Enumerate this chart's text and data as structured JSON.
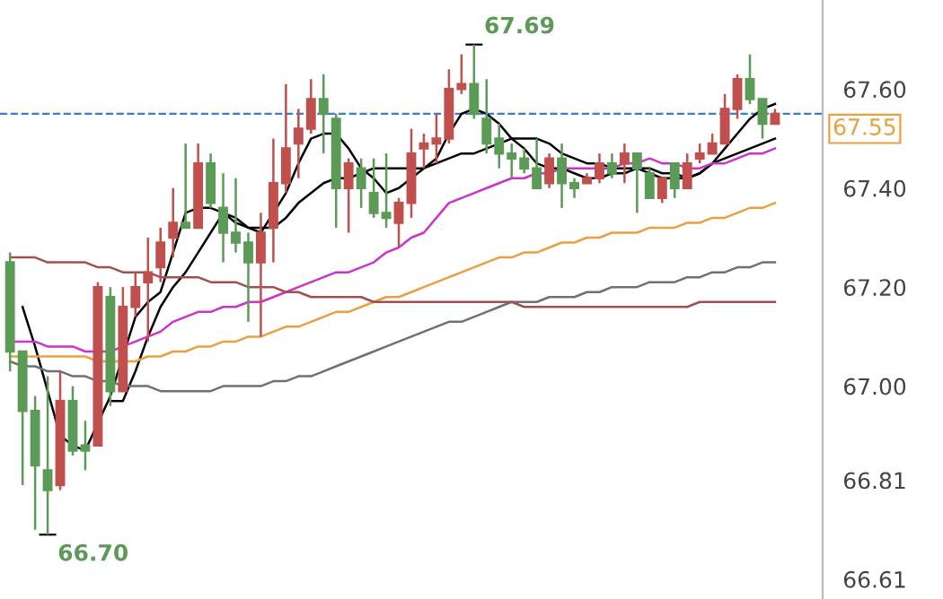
{
  "chart_data": {
    "type": "candlestick",
    "categories": [
      null,
      null,
      null,
      null,
      null,
      null,
      null,
      null,
      null,
      null,
      null,
      null,
      null,
      null,
      null,
      null,
      null,
      null,
      null,
      null,
      null,
      null,
      null,
      null,
      null,
      null,
      null,
      null,
      null,
      null,
      null,
      null,
      null,
      null,
      null,
      null,
      null,
      null,
      null,
      null,
      null,
      null,
      null,
      null,
      null,
      null,
      null,
      null,
      null,
      null,
      null,
      null,
      null,
      null,
      null,
      null,
      null,
      null,
      null,
      null,
      null,
      null
    ],
    "ohlc": [
      [
        67.25,
        67.27,
        67.03,
        67.07
      ],
      [
        67.07,
        67.07,
        66.8,
        66.95
      ],
      [
        66.95,
        66.98,
        66.71,
        66.84
      ],
      [
        66.83,
        67.02,
        66.7,
        66.79
      ],
      [
        66.8,
        67.03,
        66.79,
        66.97
      ],
      [
        66.97,
        67.0,
        66.86,
        66.87
      ],
      [
        66.88,
        66.93,
        66.83,
        66.87
      ],
      [
        66.88,
        67.21,
        66.88,
        67.2
      ],
      [
        67.18,
        67.2,
        66.96,
        66.99
      ],
      [
        66.99,
        67.2,
        66.99,
        67.16
      ],
      [
        67.16,
        67.23,
        67.14,
        67.2
      ],
      [
        67.21,
        67.3,
        67.09,
        67.23
      ],
      [
        67.24,
        67.32,
        67.21,
        67.29
      ],
      [
        67.3,
        67.4,
        67.26,
        67.33
      ],
      [
        67.33,
        67.49,
        67.32,
        67.32
      ],
      [
        67.32,
        67.49,
        67.32,
        67.45
      ],
      [
        67.45,
        67.47,
        67.36,
        67.37
      ],
      [
        67.36,
        67.43,
        67.25,
        67.31
      ],
      [
        67.31,
        67.42,
        67.27,
        67.29
      ],
      [
        67.29,
        67.31,
        67.13,
        67.25
      ],
      [
        67.25,
        67.35,
        67.1,
        67.31
      ],
      [
        67.32,
        67.5,
        67.25,
        67.41
      ],
      [
        67.41,
        67.61,
        67.39,
        67.48
      ],
      [
        67.49,
        67.56,
        67.42,
        67.52
      ],
      [
        67.52,
        67.62,
        67.51,
        67.58
      ],
      [
        67.58,
        67.63,
        67.47,
        67.55
      ],
      [
        67.54,
        67.55,
        67.32,
        67.4
      ],
      [
        67.4,
        67.46,
        67.31,
        67.45
      ],
      [
        67.44,
        67.46,
        67.36,
        67.4
      ],
      [
        67.39,
        67.46,
        67.34,
        67.35
      ],
      [
        67.35,
        67.47,
        67.32,
        67.34
      ],
      [
        67.33,
        67.38,
        67.28,
        67.37
      ],
      [
        67.37,
        67.52,
        67.34,
        67.47
      ],
      [
        67.48,
        67.51,
        67.44,
        67.49
      ],
      [
        67.49,
        67.55,
        67.45,
        67.5
      ],
      [
        67.5,
        67.64,
        67.49,
        67.6
      ],
      [
        67.6,
        67.67,
        67.59,
        67.61
      ],
      [
        67.61,
        67.69,
        67.54,
        67.55
      ],
      [
        67.54,
        67.62,
        67.47,
        67.49
      ],
      [
        67.5,
        67.53,
        67.44,
        67.47
      ],
      [
        67.47,
        67.49,
        67.42,
        67.46
      ],
      [
        67.46,
        67.48,
        67.43,
        67.44
      ],
      [
        67.44,
        67.5,
        67.4,
        67.4
      ],
      [
        67.41,
        67.47,
        67.4,
        67.46
      ],
      [
        67.46,
        67.49,
        67.36,
        67.41
      ],
      [
        67.41,
        67.42,
        67.38,
        67.4
      ],
      [
        67.41,
        67.43,
        67.41,
        67.42
      ],
      [
        67.42,
        67.47,
        67.41,
        67.45
      ],
      [
        67.45,
        67.47,
        67.42,
        67.43
      ],
      [
        67.45,
        67.49,
        67.41,
        67.47
      ],
      [
        67.47,
        67.47,
        67.35,
        67.44
      ],
      [
        67.43,
        67.44,
        67.38,
        67.38
      ],
      [
        67.38,
        67.42,
        67.37,
        67.42
      ],
      [
        67.45,
        67.45,
        67.38,
        67.4
      ],
      [
        67.4,
        67.47,
        67.4,
        67.45
      ],
      [
        67.46,
        67.49,
        67.45,
        67.47
      ],
      [
        67.47,
        67.51,
        67.47,
        67.49
      ],
      [
        67.49,
        67.59,
        67.49,
        67.56
      ],
      [
        67.56,
        67.63,
        67.54,
        67.62
      ],
      [
        67.62,
        67.67,
        67.57,
        67.58
      ],
      [
        67.58,
        67.58,
        67.5,
        67.53
      ],
      [
        67.53,
        67.56,
        67.53,
        67.55
      ]
    ],
    "colors": [
      "#5b9b57",
      "#5b9b57",
      "#5b9b57",
      "#5b9b57",
      "#c0504d",
      "#5b9b57",
      "#5b9b57",
      "#c0504d",
      "#5b9b57",
      "#c0504d",
      "#c0504d",
      "#c0504d",
      "#c0504d",
      "#c0504d",
      "#5b9b57",
      "#c0504d",
      "#5b9b57",
      "#5b9b57",
      "#5b9b57",
      "#5b9b57",
      "#c0504d",
      "#c0504d",
      "#c0504d",
      "#c0504d",
      "#c0504d",
      "#5b9b57",
      "#5b9b57",
      "#c0504d",
      "#5b9b57",
      "#5b9b57",
      "#5b9b57",
      "#c0504d",
      "#c0504d",
      "#c0504d",
      "#c0504d",
      "#c0504d",
      "#c0504d",
      "#5b9b57",
      "#5b9b57",
      "#5b9b57",
      "#5b9b57",
      "#5b9b57",
      "#5b9b57",
      "#c0504d",
      "#5b9b57",
      "#5b9b57",
      "#c0504d",
      "#c0504d",
      "#5b9b57",
      "#c0504d",
      "#5b9b57",
      "#5b9b57",
      "#c0504d",
      "#5b9b57",
      "#c0504d",
      "#c0504d",
      "#c0504d",
      "#c0504d",
      "#c0504d",
      "#5b9b57",
      "#5b9b57",
      "#c0504d"
    ],
    "series": [
      {
        "type": "line",
        "color": "#000000",
        "values": [
          null,
          67.16,
          67.08,
          66.99,
          66.9,
          66.88,
          66.87,
          null,
          66.98,
          null,
          67.14,
          67.17,
          67.19,
          67.27,
          67.35,
          67.36,
          67.36,
          67.35,
          67.33,
          67.32,
          67.31,
          67.35,
          67.39,
          67.45,
          67.5,
          67.51,
          67.51,
          67.48,
          67.44,
          67.42,
          67.39,
          67.4,
          67.42,
          67.44,
          67.46,
          67.51,
          67.55,
          67.56,
          67.55,
          67.53,
          67.5,
          67.48,
          67.45,
          67.44,
          67.44,
          67.43,
          67.42,
          67.42,
          67.43,
          67.43,
          67.44,
          67.43,
          67.42,
          67.42,
          67.42,
          67.43,
          67.45,
          67.48,
          67.51,
          67.54,
          67.56,
          67.57
        ]
      },
      {
        "type": "line",
        "color": "#000000",
        "values": [
          null,
          null,
          null,
          null,
          null,
          null,
          null,
          null,
          66.97,
          66.97,
          67.03,
          67.1,
          67.16,
          67.2,
          67.23,
          67.27,
          67.31,
          67.35,
          67.34,
          67.32,
          67.32,
          67.32,
          67.34,
          67.37,
          67.39,
          67.41,
          67.42,
          67.42,
          67.43,
          67.44,
          67.44,
          67.44,
          67.44,
          67.44,
          67.45,
          67.46,
          67.47,
          67.47,
          67.48,
          67.49,
          67.5,
          67.5,
          67.5,
          67.49,
          67.47,
          67.46,
          67.45,
          67.45,
          67.44,
          67.44,
          67.44,
          67.44,
          67.43,
          67.43,
          67.42,
          67.43,
          67.45,
          67.46,
          67.47,
          67.48,
          67.49,
          67.5
        ]
      },
      {
        "type": "line",
        "color": "#cc33cc",
        "values": [
          67.09,
          67.09,
          67.09,
          67.08,
          67.08,
          67.08,
          67.07,
          67.07,
          67.07,
          67.08,
          67.09,
          67.1,
          67.11,
          67.13,
          67.14,
          67.15,
          67.15,
          67.16,
          67.16,
          67.17,
          67.17,
          67.18,
          67.19,
          67.2,
          67.21,
          67.22,
          67.23,
          67.23,
          67.24,
          67.25,
          67.27,
          67.28,
          67.3,
          67.31,
          67.34,
          67.37,
          67.38,
          67.39,
          67.4,
          67.41,
          67.42,
          67.42,
          67.43,
          67.43,
          67.44,
          67.44,
          67.44,
          67.44,
          67.44,
          67.45,
          67.45,
          67.46,
          67.45,
          67.45,
          67.44,
          67.44,
          67.45,
          67.45,
          67.46,
          67.47,
          67.47,
          67.48
        ]
      },
      {
        "type": "line",
        "color": "#e8a040",
        "values": [
          67.06,
          67.06,
          67.06,
          67.06,
          67.06,
          67.06,
          67.06,
          67.05,
          67.05,
          67.05,
          67.05,
          67.06,
          67.06,
          67.07,
          67.07,
          67.08,
          67.08,
          67.09,
          67.09,
          67.1,
          67.1,
          67.11,
          67.12,
          67.12,
          67.13,
          67.14,
          67.15,
          67.15,
          67.16,
          67.17,
          67.18,
          67.18,
          67.19,
          67.2,
          67.21,
          67.22,
          67.23,
          67.24,
          67.25,
          67.26,
          67.26,
          67.27,
          67.27,
          67.28,
          67.29,
          67.29,
          67.3,
          67.3,
          67.31,
          67.31,
          67.31,
          67.32,
          67.32,
          67.32,
          67.33,
          67.33,
          67.34,
          67.34,
          67.35,
          67.36,
          67.36,
          67.37
        ]
      },
      {
        "type": "line",
        "color": "#707070",
        "values": [
          67.05,
          67.04,
          67.04,
          67.03,
          67.03,
          67.02,
          67.02,
          67.01,
          67.01,
          67.0,
          67.0,
          67.0,
          66.99,
          66.99,
          66.99,
          66.99,
          66.99,
          67.0,
          67.0,
          67.0,
          67.0,
          67.01,
          67.01,
          67.02,
          67.02,
          67.03,
          67.04,
          67.05,
          67.06,
          67.07,
          67.08,
          67.09,
          67.1,
          67.11,
          67.12,
          67.13,
          67.13,
          67.14,
          67.15,
          67.16,
          67.17,
          67.17,
          67.17,
          67.18,
          67.18,
          67.18,
          67.19,
          67.19,
          67.2,
          67.2,
          67.2,
          67.21,
          67.21,
          67.21,
          67.22,
          67.22,
          67.23,
          67.23,
          67.24,
          67.24,
          67.25,
          67.25
        ]
      },
      {
        "type": "line",
        "color": "#a05050",
        "values": [
          67.26,
          67.26,
          67.26,
          67.25,
          67.25,
          67.25,
          67.25,
          67.24,
          67.24,
          67.23,
          67.23,
          67.23,
          67.22,
          67.22,
          67.22,
          67.22,
          67.21,
          67.21,
          67.21,
          67.2,
          67.2,
          67.2,
          67.19,
          67.19,
          67.18,
          67.18,
          67.18,
          67.18,
          67.18,
          67.17,
          67.17,
          67.17,
          67.17,
          67.17,
          67.17,
          67.17,
          67.17,
          67.17,
          67.17,
          67.17,
          67.17,
          67.16,
          67.16,
          67.16,
          67.16,
          67.16,
          67.16,
          67.16,
          67.16,
          67.16,
          67.16,
          67.16,
          67.16,
          67.16,
          67.16,
          67.17,
          67.17,
          67.17,
          67.17,
          67.17,
          67.17,
          67.17
        ]
      }
    ],
    "annotations": [
      "67.69",
      "66.70"
    ],
    "ref_lines": [
      {
        "axis": "y",
        "value": 67.55,
        "label": "67.55",
        "color": "#3a7fc0",
        "line_style": "dashed"
      }
    ],
    "ylim": [
      66.57,
      67.78
    ],
    "yticks": [
      {
        "value": 67.6,
        "label": "67.60"
      },
      {
        "value": 67.4,
        "label": "67.40"
      },
      {
        "value": 67.2,
        "label": "67.20"
      },
      {
        "value": 67.0,
        "label": "67.00"
      },
      66.81,
      66.61
    ],
    "tick_labels": "y",
    "grid": false
  }
}
